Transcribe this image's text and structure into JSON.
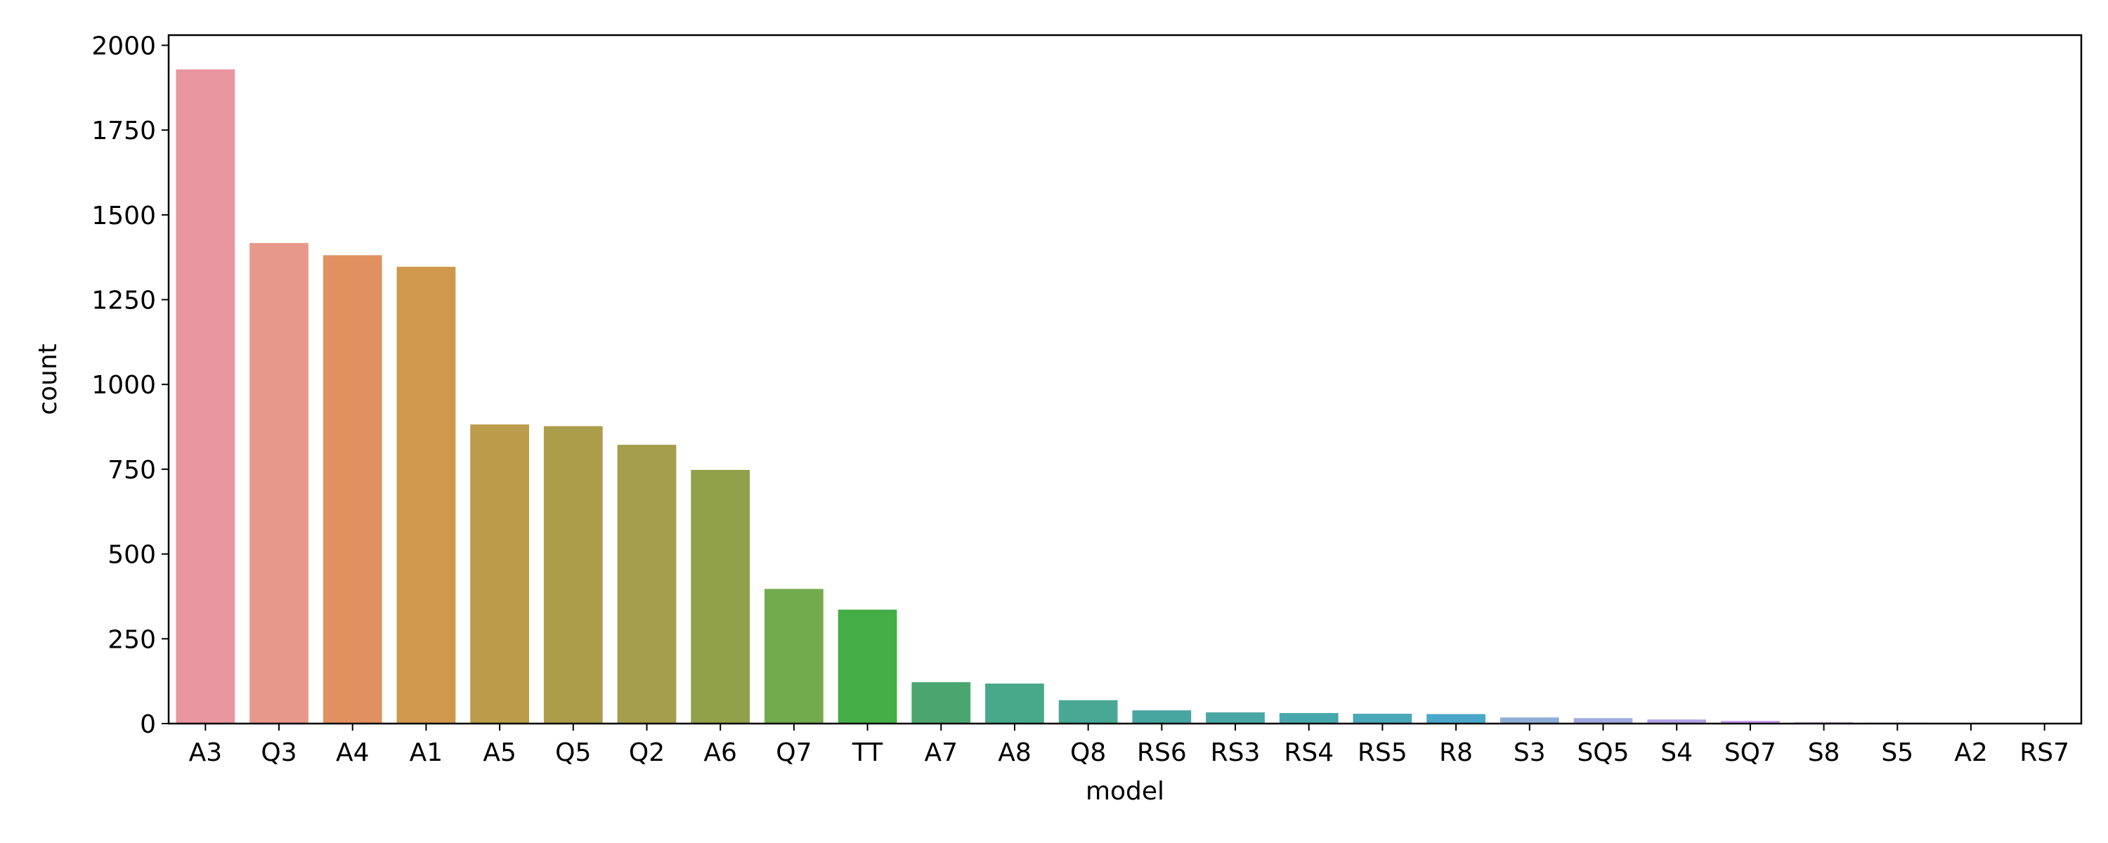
{
  "chart_data": {
    "type": "bar",
    "categories": [
      "A3",
      "Q3",
      "A4",
      "A1",
      "A5",
      "Q5",
      "Q2",
      "A6",
      "Q7",
      "TT",
      "A7",
      "A8",
      "Q8",
      "RS6",
      "RS3",
      "RS4",
      "RS5",
      "R8",
      "S3",
      "SQ5",
      "S4",
      "SQ7",
      "S8",
      "S5",
      "A2",
      "RS7"
    ],
    "values": [
      1929,
      1417,
      1381,
      1347,
      882,
      877,
      822,
      748,
      397,
      336,
      122,
      118,
      69,
      39,
      33,
      31,
      29,
      28,
      18,
      16,
      12,
      8,
      4,
      3,
      1,
      1
    ],
    "colors": [
      "#e8959f",
      "#e8988a",
      "#e1905f",
      "#cf984d",
      "#bb9c4b",
      "#ac9d4a",
      "#a49d4a",
      "#91a149",
      "#72ab4d",
      "#44ad45",
      "#4aa66e",
      "#48a88a",
      "#49a893",
      "#48a6a0",
      "#48a7a4",
      "#48a7ad",
      "#4ba8b8",
      "#4ba7c8",
      "#8eaed5",
      "#a2a8e0",
      "#b4a1e8",
      "#c69ce6",
      "#d79ae1",
      "#e196d6",
      "#e693cb",
      "#e891bb"
    ],
    "xlabel": "model",
    "ylabel": "count",
    "ylim": [
      0,
      2030
    ],
    "yticks": [
      0,
      250,
      500,
      750,
      1000,
      1250,
      1500,
      1750,
      2000
    ],
    "grid": false,
    "legend": "none"
  }
}
